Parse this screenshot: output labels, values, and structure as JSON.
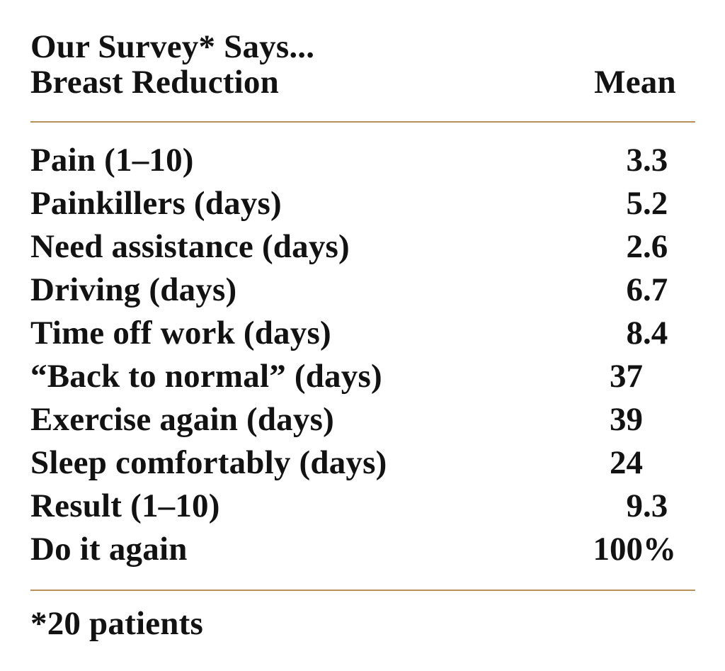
{
  "page": {
    "background": "#ffffff",
    "text_color": "#121212",
    "rule_color": "#b7905b"
  },
  "header": {
    "title": "Our Survey* Says...",
    "subtitle": "Breast Reduction",
    "value_column_label": "Mean"
  },
  "table": {
    "rows": [
      {
        "label": "Pain (1–10)",
        "value": "3.3"
      },
      {
        "label": "Painkillers (days)",
        "value": "5.2"
      },
      {
        "label": "Need assistance (days)",
        "value": "2.6"
      },
      {
        "label": "Driving (days)",
        "value": "6.7"
      },
      {
        "label": "Time off work (days)",
        "value": "8.4"
      },
      {
        "label": "“Back to normal” (days)",
        "value": "37"
      },
      {
        "label": "Exercise again (days)",
        "value": "39"
      },
      {
        "label": "Sleep comfortably (days)",
        "value": "24"
      },
      {
        "label": "Result (1–10)",
        "value": "9.3"
      },
      {
        "label": "Do it again",
        "value": "100%"
      }
    ]
  },
  "footnote": "*20 patients",
  "chart_data": {
    "type": "table",
    "title": "Our Survey* Says...",
    "columns": [
      "Breast Reduction",
      "Mean"
    ],
    "rows": [
      [
        "Pain (1–10)",
        3.3
      ],
      [
        "Painkillers (days)",
        5.2
      ],
      [
        "Need assistance (days)",
        2.6
      ],
      [
        "Driving (days)",
        6.7
      ],
      [
        "Time off work (days)",
        8.4
      ],
      [
        "“Back to normal” (days)",
        37
      ],
      [
        "Exercise again (days)",
        39
      ],
      [
        "Sleep comfortably (days)",
        24
      ],
      [
        "Result (1–10)",
        9.3
      ],
      [
        "Do it again",
        "100%"
      ]
    ],
    "footnote": "*20 patients",
    "layout": "two-column table, values decimal-aligned, tan horizontal rules above and below body"
  }
}
